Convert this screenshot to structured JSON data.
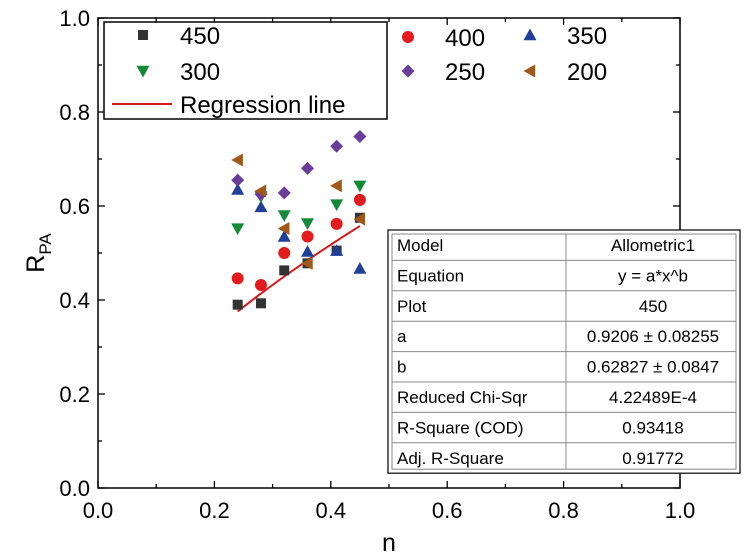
{
  "chart_data": {
    "type": "scatter",
    "title": "",
    "xlabel": "n",
    "ylabel_main": "R",
    "ylabel_sub": "PA",
    "xlim": [
      0.0,
      1.0
    ],
    "ylim": [
      0.0,
      1.0
    ],
    "x_ticks": [
      "0.0",
      "0.2",
      "0.4",
      "0.6",
      "0.8",
      "1.0"
    ],
    "y_ticks": [
      "0.0",
      "0.2",
      "0.4",
      "0.6",
      "0.8",
      "1.0"
    ],
    "x_tick_values": [
      0.0,
      0.2,
      0.4,
      0.6,
      0.8,
      1.0
    ],
    "y_tick_values": [
      0.0,
      0.2,
      0.4,
      0.6,
      0.8,
      1.0
    ],
    "legend_position": "top",
    "series": [
      {
        "name": "450",
        "marker": "square",
        "color": "#333333",
        "x": [
          0.24,
          0.28,
          0.32,
          0.36,
          0.41,
          0.45
        ],
        "y": [
          0.39,
          0.393,
          0.463,
          0.478,
          0.505,
          0.575
        ]
      },
      {
        "name": "400",
        "marker": "circle",
        "color": "#e41a1c",
        "x": [
          0.24,
          0.28,
          0.32,
          0.36,
          0.41,
          0.45
        ],
        "y": [
          0.446,
          0.432,
          0.5,
          0.535,
          0.562,
          0.613
        ]
      },
      {
        "name": "350",
        "marker": "triangle-up",
        "color": "#1f3f99",
        "x": [
          0.24,
          0.28,
          0.32,
          0.36,
          0.41,
          0.45
        ],
        "y": [
          0.635,
          0.598,
          0.535,
          0.503,
          0.505,
          0.467
        ]
      },
      {
        "name": "300",
        "marker": "triangle-down",
        "color": "#138a36",
        "x": [
          0.24,
          0.28,
          0.32,
          0.36,
          0.41,
          0.45
        ],
        "y": [
          0.552,
          0.62,
          0.58,
          0.563,
          0.603,
          0.643
        ]
      },
      {
        "name": "250",
        "marker": "diamond",
        "color": "#6a3d9a",
        "x": [
          0.24,
          0.28,
          0.32,
          0.36,
          0.41,
          0.45
        ],
        "y": [
          0.655,
          0.625,
          0.628,
          0.68,
          0.727,
          0.748
        ]
      },
      {
        "name": "200",
        "marker": "triangle-left",
        "color": "#a0581a",
        "x": [
          0.24,
          0.28,
          0.32,
          0.36,
          0.41,
          0.45
        ],
        "y": [
          0.698,
          0.632,
          0.552,
          0.478,
          0.643,
          0.572
        ]
      }
    ],
    "regression": {
      "name": "Regression line",
      "color": "#d7191c",
      "a": 0.9206,
      "b": 0.62827,
      "x_from": 0.24,
      "x_to": 0.45
    },
    "fit_table": [
      {
        "label": "Model",
        "value": "Allometric1"
      },
      {
        "label": "Equation",
        "value": "y = a*x^b"
      },
      {
        "label": "Plot",
        "value": "450"
      },
      {
        "label": "a",
        "value": "0.9206 ± 0.08255"
      },
      {
        "label": "b",
        "value": "0.62827 ± 0.0847"
      },
      {
        "label": "Reduced Chi-Sqr",
        "value": "4.22489E-4"
      },
      {
        "label": "R-Square (COD)",
        "value": "0.93418"
      },
      {
        "label": "Adj. R-Square",
        "value": "0.91772"
      }
    ]
  }
}
